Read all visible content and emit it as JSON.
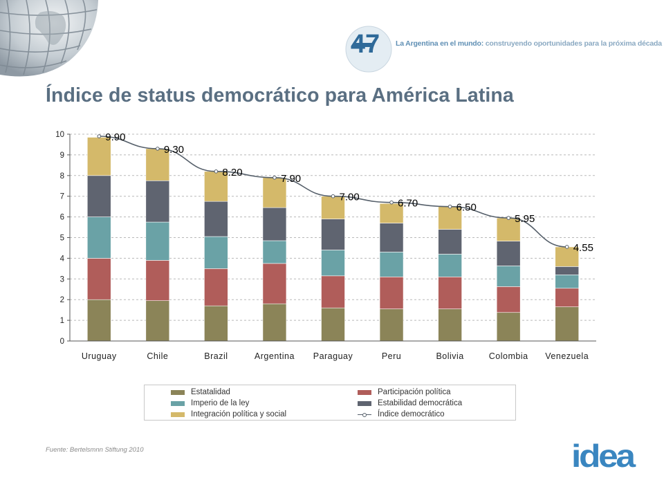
{
  "header": {
    "badge_text": "47",
    "tagline_bold": "La Argentina en el mundo:",
    "tagline_rest": "construyendo oportunidades para la próxima década"
  },
  "page_title": "Índice de status democrático para América Latina",
  "source": "Fuente: Bertelsmnn Stiftung 2010",
  "logo": "idea",
  "colors": {
    "Estatalidad": "#8b8458",
    "Participación política": "#b05d5a",
    "Imperio de la ley": "#6aa2a6",
    "Estabilidad democrática": "#5f6470",
    "Integración política y social": "#d4b96a",
    "Índice democrático": "#555f6a"
  },
  "chart_data": {
    "type": "bar",
    "stacked": true,
    "categories": [
      "Uruguay",
      "Chile",
      "Brazil",
      "Argentina",
      "Paraguay",
      "Peru",
      "Bolivia",
      "Colombia",
      "Venezuela"
    ],
    "series": [
      {
        "name": "Estatalidad",
        "values": [
          2.0,
          1.95,
          1.7,
          1.8,
          1.6,
          1.55,
          1.55,
          1.38,
          1.65
        ]
      },
      {
        "name": "Participación política",
        "values": [
          2.0,
          1.95,
          1.8,
          1.95,
          1.55,
          1.55,
          1.55,
          1.25,
          0.9
        ]
      },
      {
        "name": "Imperio de la ley",
        "values": [
          2.0,
          1.85,
          1.55,
          1.1,
          1.25,
          1.2,
          1.1,
          1.0,
          0.65
        ]
      },
      {
        "name": "Estabilidad democrática",
        "values": [
          2.0,
          2.0,
          1.7,
          1.6,
          1.5,
          1.4,
          1.2,
          1.2,
          0.4
        ]
      },
      {
        "name": "Integración política y social",
        "values": [
          1.85,
          1.55,
          1.45,
          1.45,
          1.1,
          0.95,
          1.1,
          1.12,
          0.95
        ]
      }
    ],
    "line_series": {
      "name": "Índice democrático",
      "values": [
        9.9,
        9.3,
        8.2,
        7.9,
        7.0,
        6.7,
        6.5,
        5.95,
        4.55
      ]
    },
    "line_labels": [
      "9.90",
      "9.30",
      "8.20",
      "7.90",
      "7.00",
      "6.70",
      "6.50",
      "5.95",
      "4.55"
    ],
    "y_ticks": [
      "0",
      "1",
      "2",
      "3",
      "4",
      "5",
      "6",
      "7",
      "8",
      "9",
      "10"
    ],
    "ylim": [
      0,
      10
    ],
    "grid": true,
    "legend_position": "bottom"
  }
}
